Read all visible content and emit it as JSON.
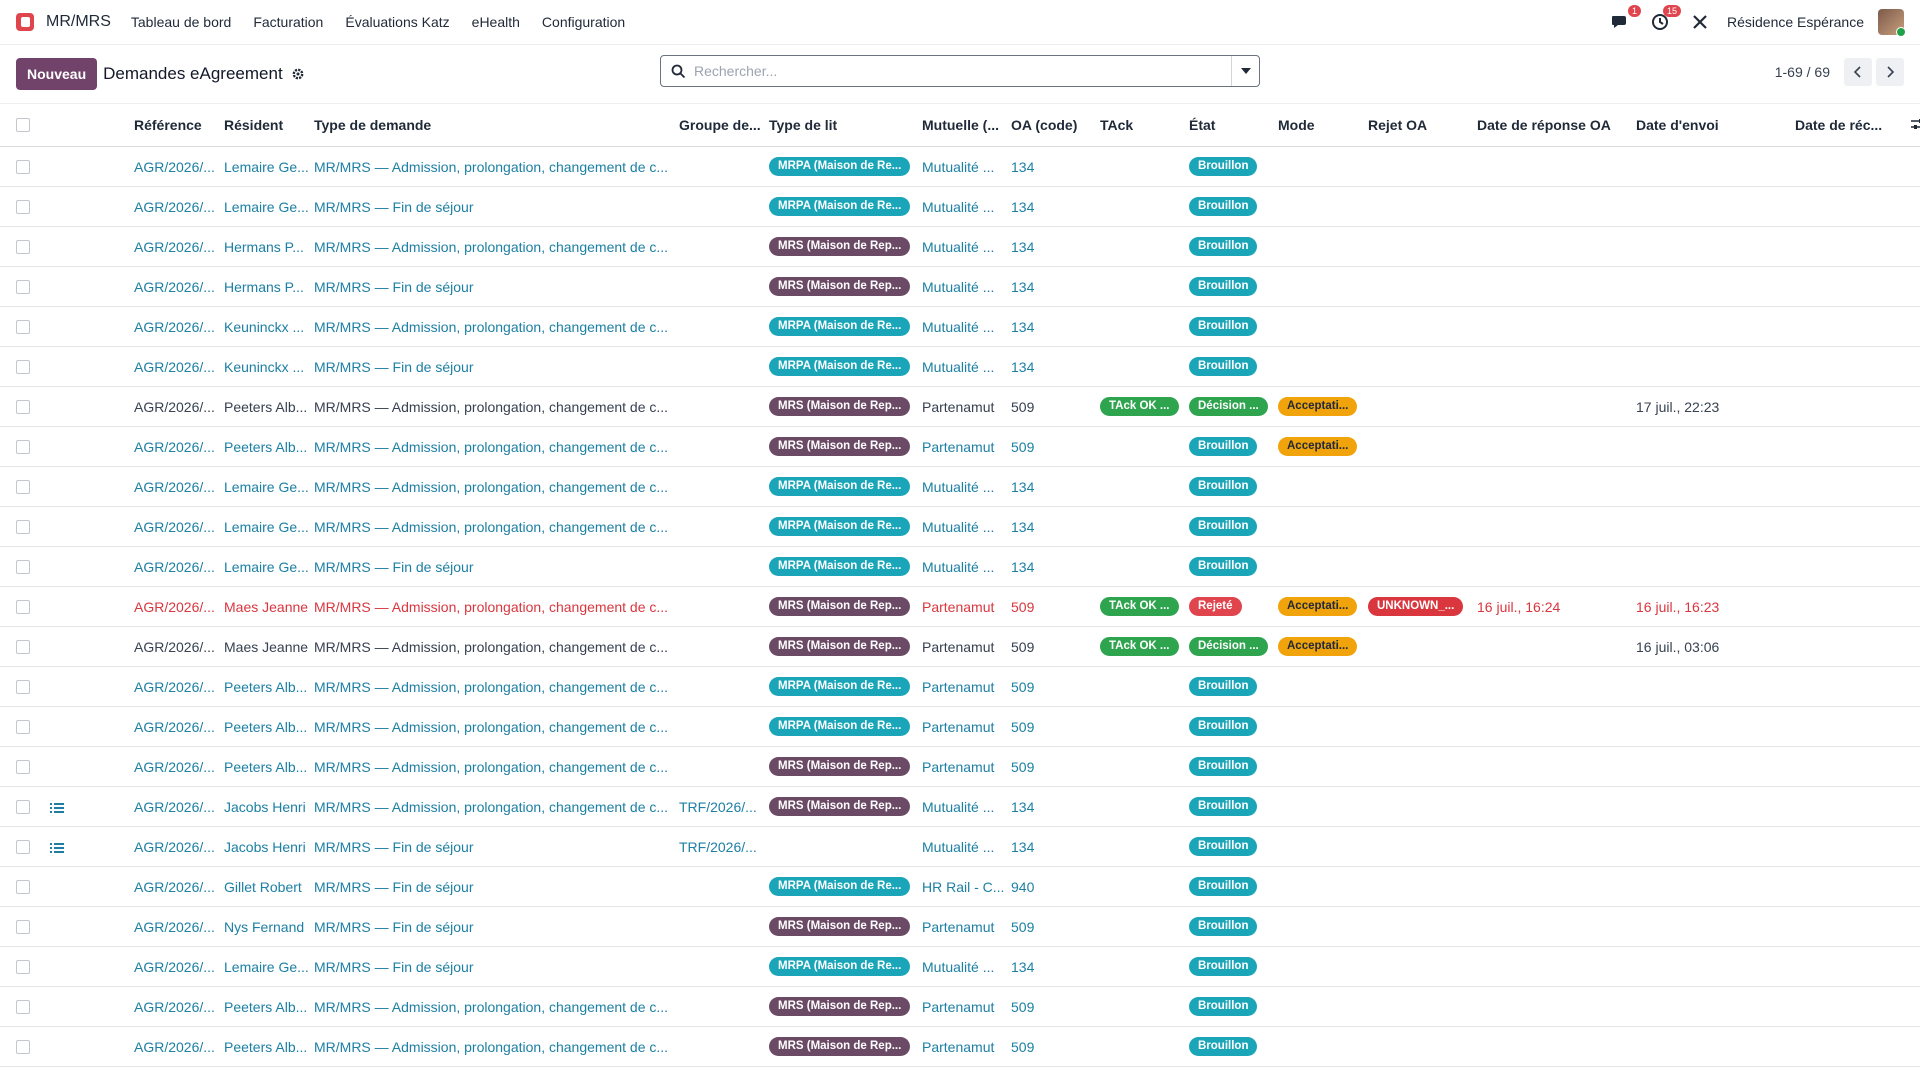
{
  "navbar": {
    "app_name": "MR/MRS",
    "menu": [
      "Tableau de bord",
      "Facturation",
      "Évaluations Katz",
      "eHealth",
      "Configuration"
    ],
    "messages_count": "1",
    "activities_count": "15",
    "company": "Résidence Espérance"
  },
  "control": {
    "new_label": "Nouveau",
    "title": "Demandes eAgreement",
    "search_placeholder": "Rechercher...",
    "pager": "1-69 / 69"
  },
  "columns": [
    "Référence",
    "Résident",
    "Type de demande",
    "Groupe de...",
    "Type de lit",
    "Mutuelle (...",
    "OA (code)",
    "TAck",
    "État",
    "Mode",
    "Rejet OA",
    "Date de réponse OA",
    "Date d'envoi",
    "Date de réc..."
  ],
  "rows": [
    {
      "style": "link",
      "icon": false,
      "ref": "AGR/2026/...",
      "resident": "Lemaire Ge...",
      "type": "MR/MRS — Admission, prolongation, changement de c...",
      "group": "",
      "bed": "MRPA (Maison de Re...",
      "bed_kind": "mrpa",
      "mutual": "Mutualité ...",
      "oa": "134",
      "tack": "",
      "state": "Brouillon",
      "state_kind": "draft",
      "mode": "",
      "reject": "",
      "resp_date": "",
      "sent_date": ""
    },
    {
      "style": "link",
      "icon": false,
      "ref": "AGR/2026/...",
      "resident": "Lemaire Ge...",
      "type": "MR/MRS — Fin de séjour",
      "group": "",
      "bed": "MRPA (Maison de Re...",
      "bed_kind": "mrpa",
      "mutual": "Mutualité ...",
      "oa": "134",
      "tack": "",
      "state": "Brouillon",
      "state_kind": "draft",
      "mode": "",
      "reject": "",
      "resp_date": "",
      "sent_date": ""
    },
    {
      "style": "link",
      "icon": false,
      "ref": "AGR/2026/...",
      "resident": "Hermans P...",
      "type": "MR/MRS — Admission, prolongation, changement de c...",
      "group": "",
      "bed": "MRS (Maison de Rep...",
      "bed_kind": "mrs",
      "mutual": "Mutualité ...",
      "oa": "134",
      "tack": "",
      "state": "Brouillon",
      "state_kind": "draft",
      "mode": "",
      "reject": "",
      "resp_date": "",
      "sent_date": ""
    },
    {
      "style": "link",
      "icon": false,
      "ref": "AGR/2026/...",
      "resident": "Hermans P...",
      "type": "MR/MRS — Fin de séjour",
      "group": "",
      "bed": "MRS (Maison de Rep...",
      "bed_kind": "mrs",
      "mutual": "Mutualité ...",
      "oa": "134",
      "tack": "",
      "state": "Brouillon",
      "state_kind": "draft",
      "mode": "",
      "reject": "",
      "resp_date": "",
      "sent_date": ""
    },
    {
      "style": "link",
      "icon": false,
      "ref": "AGR/2026/...",
      "resident": "Keuninckx ...",
      "type": "MR/MRS — Admission, prolongation, changement de c...",
      "group": "",
      "bed": "MRPA (Maison de Re...",
      "bed_kind": "mrpa",
      "mutual": "Mutualité ...",
      "oa": "134",
      "tack": "",
      "state": "Brouillon",
      "state_kind": "draft",
      "mode": "",
      "reject": "",
      "resp_date": "",
      "sent_date": ""
    },
    {
      "style": "link",
      "icon": false,
      "ref": "AGR/2026/...",
      "resident": "Keuninckx ...",
      "type": "MR/MRS — Fin de séjour",
      "group": "",
      "bed": "MRPA (Maison de Re...",
      "bed_kind": "mrpa",
      "mutual": "Mutualité ...",
      "oa": "134",
      "tack": "",
      "state": "Brouillon",
      "state_kind": "draft",
      "mode": "",
      "reject": "",
      "resp_date": "",
      "sent_date": ""
    },
    {
      "style": "dark",
      "icon": false,
      "ref": "AGR/2026/...",
      "resident": "Peeters Alb...",
      "type": "MR/MRS — Admission, prolongation, changement de c...",
      "group": "",
      "bed": "MRS (Maison de Rep...",
      "bed_kind": "mrs",
      "mutual": "Partenamut",
      "oa": "509",
      "tack": "TAck OK ...",
      "state": "Décision ...",
      "state_kind": "green",
      "mode": "Acceptati...",
      "reject": "",
      "resp_date": "",
      "sent_date": "17 juil., 22:23"
    },
    {
      "style": "link",
      "icon": false,
      "ref": "AGR/2026/...",
      "resident": "Peeters Alb...",
      "type": "MR/MRS — Admission, prolongation, changement de c...",
      "group": "",
      "bed": "MRS (Maison de Rep...",
      "bed_kind": "mrs",
      "mutual": "Partenamut",
      "oa": "509",
      "tack": "",
      "state": "Brouillon",
      "state_kind": "draft",
      "mode": "Acceptati...",
      "reject": "",
      "resp_date": "",
      "sent_date": ""
    },
    {
      "style": "link",
      "icon": false,
      "ref": "AGR/2026/...",
      "resident": "Lemaire Ge...",
      "type": "MR/MRS — Admission, prolongation, changement de c...",
      "group": "",
      "bed": "MRPA (Maison de Re...",
      "bed_kind": "mrpa",
      "mutual": "Mutualité ...",
      "oa": "134",
      "tack": "",
      "state": "Brouillon",
      "state_kind": "draft",
      "mode": "",
      "reject": "",
      "resp_date": "",
      "sent_date": ""
    },
    {
      "style": "link",
      "icon": false,
      "ref": "AGR/2026/...",
      "resident": "Lemaire Ge...",
      "type": "MR/MRS — Admission, prolongation, changement de c...",
      "group": "",
      "bed": "MRPA (Maison de Re...",
      "bed_kind": "mrpa",
      "mutual": "Mutualité ...",
      "oa": "134",
      "tack": "",
      "state": "Brouillon",
      "state_kind": "draft",
      "mode": "",
      "reject": "",
      "resp_date": "",
      "sent_date": ""
    },
    {
      "style": "link",
      "icon": false,
      "ref": "AGR/2026/...",
      "resident": "Lemaire Ge...",
      "type": "MR/MRS — Fin de séjour",
      "group": "",
      "bed": "MRPA (Maison de Re...",
      "bed_kind": "mrpa",
      "mutual": "Mutualité ...",
      "oa": "134",
      "tack": "",
      "state": "Brouillon",
      "state_kind": "draft",
      "mode": "",
      "reject": "",
      "resp_date": "",
      "sent_date": ""
    },
    {
      "style": "danger",
      "icon": false,
      "ref": "AGR/2026/...",
      "resident": "Maes Jeanne",
      "type": "MR/MRS — Admission, prolongation, changement de c...",
      "group": "",
      "bed": "MRS (Maison de Rep...",
      "bed_kind": "mrs",
      "mutual": "Partenamut",
      "oa": "509",
      "tack": "TAck OK ...",
      "state": "Rejeté",
      "state_kind": "red",
      "mode": "Acceptati...",
      "reject": "UNKNOWN_...",
      "resp_date": "16 juil., 16:24",
      "sent_date": "16 juil., 16:23"
    },
    {
      "style": "dark",
      "icon": false,
      "ref": "AGR/2026/...",
      "resident": "Maes Jeanne",
      "type": "MR/MRS — Admission, prolongation, changement de c...",
      "group": "",
      "bed": "MRS (Maison de Rep...",
      "bed_kind": "mrs",
      "mutual": "Partenamut",
      "oa": "509",
      "tack": "TAck OK ...",
      "state": "Décision ...",
      "state_kind": "green",
      "mode": "Acceptati...",
      "reject": "",
      "resp_date": "",
      "sent_date": "16 juil., 03:06"
    },
    {
      "style": "link",
      "icon": false,
      "ref": "AGR/2026/...",
      "resident": "Peeters Alb...",
      "type": "MR/MRS — Admission, prolongation, changement de c...",
      "group": "",
      "bed": "MRPA (Maison de Re...",
      "bed_kind": "mrpa",
      "mutual": "Partenamut",
      "oa": "509",
      "tack": "",
      "state": "Brouillon",
      "state_kind": "draft",
      "mode": "",
      "reject": "",
      "resp_date": "",
      "sent_date": ""
    },
    {
      "style": "link",
      "icon": false,
      "ref": "AGR/2026/...",
      "resident": "Peeters Alb...",
      "type": "MR/MRS — Admission, prolongation, changement de c...",
      "group": "",
      "bed": "MRPA (Maison de Re...",
      "bed_kind": "mrpa",
      "mutual": "Partenamut",
      "oa": "509",
      "tack": "",
      "state": "Brouillon",
      "state_kind": "draft",
      "mode": "",
      "reject": "",
      "resp_date": "",
      "sent_date": ""
    },
    {
      "style": "link",
      "icon": false,
      "ref": "AGR/2026/...",
      "resident": "Peeters Alb...",
      "type": "MR/MRS — Admission, prolongation, changement de c...",
      "group": "",
      "bed": "MRS (Maison de Rep...",
      "bed_kind": "mrs",
      "mutual": "Partenamut",
      "oa": "509",
      "tack": "",
      "state": "Brouillon",
      "state_kind": "draft",
      "mode": "",
      "reject": "",
      "resp_date": "",
      "sent_date": ""
    },
    {
      "style": "link",
      "icon": true,
      "ref": "AGR/2026/...",
      "resident": "Jacobs Henri",
      "type": "MR/MRS — Admission, prolongation, changement de c...",
      "group": "TRF/2026/...",
      "bed": "MRS (Maison de Rep...",
      "bed_kind": "mrs",
      "mutual": "Mutualité ...",
      "oa": "134",
      "tack": "",
      "state": "Brouillon",
      "state_kind": "draft",
      "mode": "",
      "reject": "",
      "resp_date": "",
      "sent_date": ""
    },
    {
      "style": "link",
      "icon": true,
      "ref": "AGR/2026/...",
      "resident": "Jacobs Henri",
      "type": "MR/MRS — Fin de séjour",
      "group": "TRF/2026/...",
      "bed": "",
      "bed_kind": "",
      "mutual": "Mutualité ...",
      "oa": "134",
      "tack": "",
      "state": "Brouillon",
      "state_kind": "draft",
      "mode": "",
      "reject": "",
      "resp_date": "",
      "sent_date": ""
    },
    {
      "style": "link",
      "icon": false,
      "ref": "AGR/2026/...",
      "resident": "Gillet Robert",
      "type": "MR/MRS — Fin de séjour",
      "group": "",
      "bed": "MRPA (Maison de Re...",
      "bed_kind": "mrpa",
      "mutual": "HR Rail - C...",
      "oa": "940",
      "tack": "",
      "state": "Brouillon",
      "state_kind": "draft",
      "mode": "",
      "reject": "",
      "resp_date": "",
      "sent_date": ""
    },
    {
      "style": "link",
      "icon": false,
      "ref": "AGR/2026/...",
      "resident": "Nys Fernand",
      "type": "MR/MRS — Fin de séjour",
      "group": "",
      "bed": "MRS (Maison de Rep...",
      "bed_kind": "mrs",
      "mutual": "Partenamut",
      "oa": "509",
      "tack": "",
      "state": "Brouillon",
      "state_kind": "draft",
      "mode": "",
      "reject": "",
      "resp_date": "",
      "sent_date": ""
    },
    {
      "style": "link",
      "icon": false,
      "ref": "AGR/2026/...",
      "resident": "Lemaire Ge...",
      "type": "MR/MRS — Fin de séjour",
      "group": "",
      "bed": "MRPA (Maison de Re...",
      "bed_kind": "mrpa",
      "mutual": "Mutualité ...",
      "oa": "134",
      "tack": "",
      "state": "Brouillon",
      "state_kind": "draft",
      "mode": "",
      "reject": "",
      "resp_date": "",
      "sent_date": ""
    },
    {
      "style": "link",
      "icon": false,
      "ref": "AGR/2026/...",
      "resident": "Peeters Alb...",
      "type": "MR/MRS — Admission, prolongation, changement de c...",
      "group": "",
      "bed": "MRS (Maison de Rep...",
      "bed_kind": "mrs",
      "mutual": "Partenamut",
      "oa": "509",
      "tack": "",
      "state": "Brouillon",
      "state_kind": "draft",
      "mode": "",
      "reject": "",
      "resp_date": "",
      "sent_date": ""
    },
    {
      "style": "link",
      "icon": false,
      "ref": "AGR/2026/...",
      "resident": "Peeters Alb...",
      "type": "MR/MRS — Admission, prolongation, changement de c...",
      "group": "",
      "bed": "MRS (Maison de Rep...",
      "bed_kind": "mrs",
      "mutual": "Partenamut",
      "oa": "509",
      "tack": "",
      "state": "Brouillon",
      "state_kind": "draft",
      "mode": "",
      "reject": "",
      "resp_date": "",
      "sent_date": ""
    }
  ]
}
